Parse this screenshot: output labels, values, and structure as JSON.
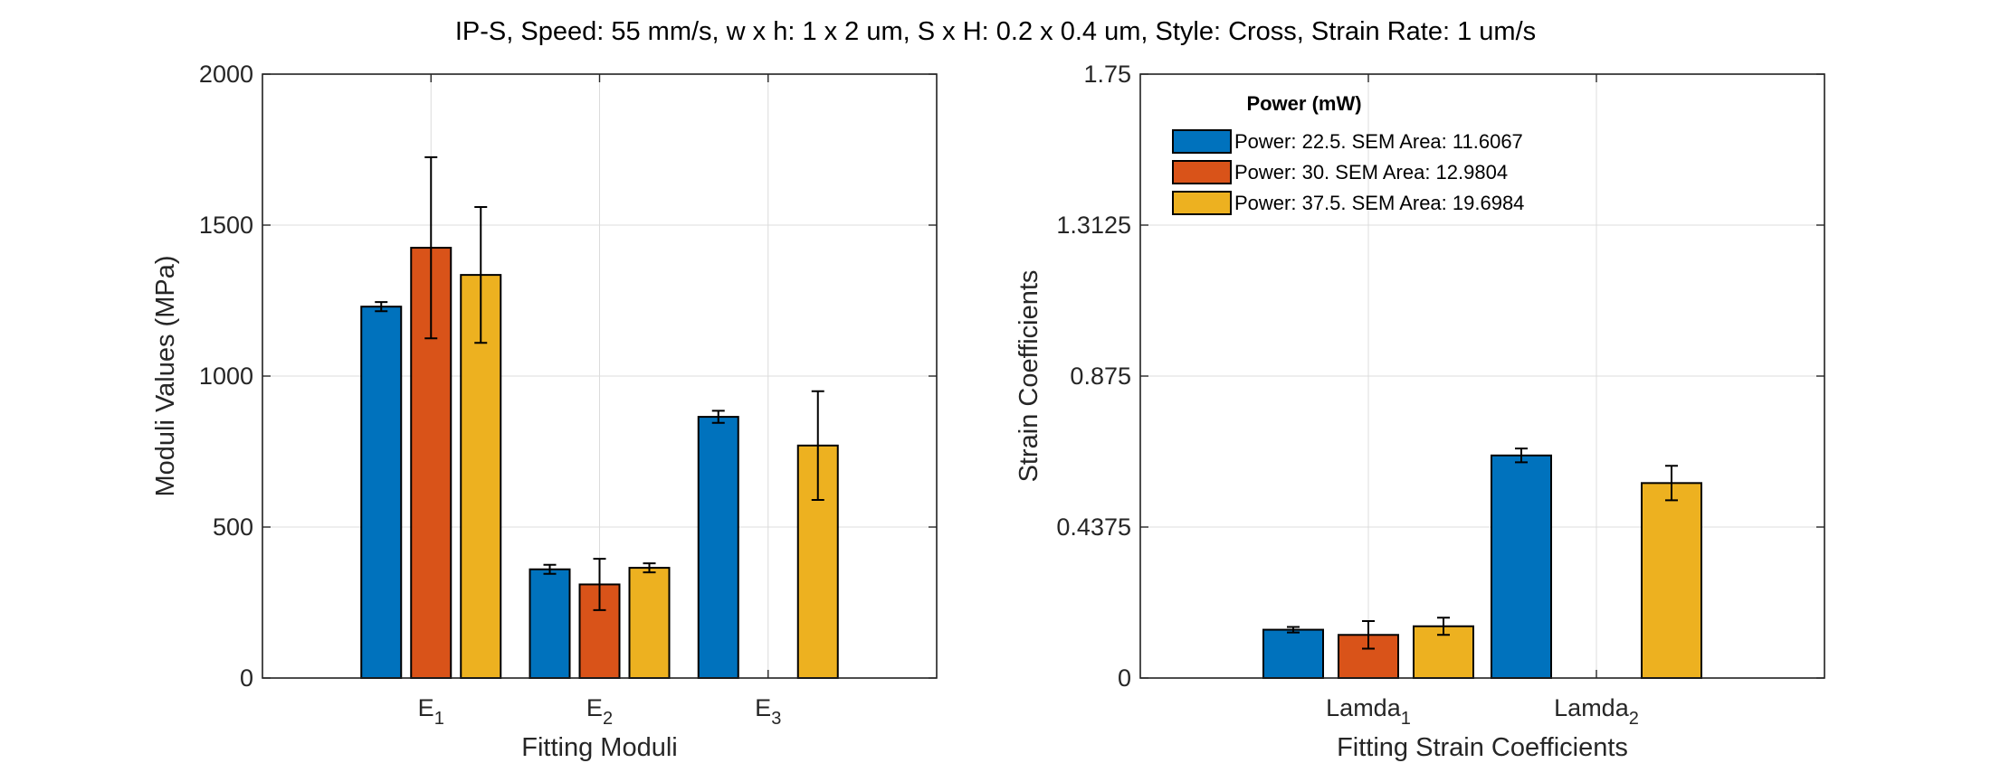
{
  "figure": {
    "title": "IP-S, Speed: 55 mm/s, w x h: 1 x 2 um, S x H: 0.2 x 0.4 um, Style: Cross, Strain Rate: 1 um/s"
  },
  "colors": [
    "#0072BD",
    "#D95319",
    "#EDB120"
  ],
  "chart_data": [
    {
      "type": "bar",
      "xlabel": "Fitting Moduli",
      "ylabel": "Moduli Values (MPa)",
      "ylim": [
        0,
        2000
      ],
      "yticks": [
        0,
        500,
        1000,
        1500,
        2000
      ],
      "ytick_labels": [
        "0",
        "500",
        "1000",
        "1500",
        "2000"
      ],
      "grid": true,
      "categories": [
        {
          "base": "E",
          "sub": "1"
        },
        {
          "base": "E",
          "sub": "2"
        },
        {
          "base": "E",
          "sub": "3"
        }
      ],
      "series": [
        {
          "values": [
            1230,
            360,
            865
          ],
          "errors": [
            15,
            15,
            20
          ]
        },
        {
          "values": [
            1425,
            310,
            0
          ],
          "errors": [
            300,
            85,
            0
          ]
        },
        {
          "values": [
            1335,
            365,
            770
          ],
          "errors": [
            225,
            15,
            180
          ]
        }
      ]
    },
    {
      "type": "bar",
      "xlabel": "Fitting Strain Coefficients",
      "ylabel": "Strain Coefficients",
      "ylim": [
        0,
        1.75
      ],
      "yticks": [
        0,
        0.4375,
        0.875,
        1.3125,
        1.75
      ],
      "ytick_labels": [
        "0",
        "0.4375",
        "0.875",
        "1.3125",
        "1.75"
      ],
      "grid": true,
      "categories": [
        {
          "base": "Lamda",
          "sub": "1"
        },
        {
          "base": "Lamda",
          "sub": "2"
        }
      ],
      "series": [
        {
          "name": "Power: 22.5. SEM Area: 11.6067",
          "values": [
            0.14,
            0.645
          ],
          "errors": [
            0.008,
            0.02
          ]
        },
        {
          "name": "Power: 30. SEM Area: 12.9804",
          "values": [
            0.125,
            0
          ],
          "errors": [
            0.04,
            0
          ]
        },
        {
          "name": "Power: 37.5. SEM Area: 19.6984",
          "values": [
            0.15,
            0.565
          ],
          "errors": [
            0.025,
            0.05
          ]
        }
      ],
      "legend": {
        "title": "Power (mW)",
        "location": "top-left"
      }
    }
  ]
}
